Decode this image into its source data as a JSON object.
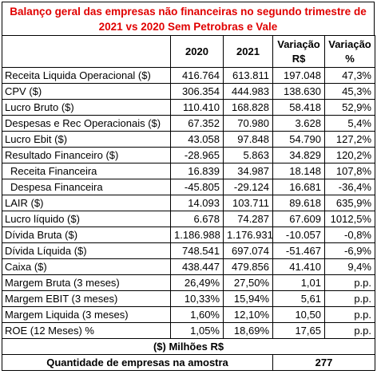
{
  "title": "Balanço geral das empresas não financeiras no segundo trimestre de 2021 vs 2020 Sem Petrobras e Vale",
  "table": {
    "header": [
      "2020",
      "2021",
      "Variação R$",
      "Variação %"
    ],
    "rows": [
      [
        "Receita Liquida Operacional ($)",
        "416.764",
        "613.811",
        "197.048",
        "47,3%"
      ],
      [
        "CPV ($)",
        "306.354",
        "444.983",
        "138.630",
        "45,3%"
      ],
      [
        "Lucro Bruto ($)",
        "110.410",
        "168.828",
        "58.418",
        "52,9%"
      ],
      [
        "Despesas e Rec Operacionais ($)",
        "67.352",
        "70.980",
        "3.628",
        "5,4%"
      ],
      [
        "Lucro Ebit ($)",
        "43.058",
        "97.848",
        "54.790",
        "127,2%"
      ],
      [
        "Resultado Financeiro ($)",
        "-28.965",
        "5.863",
        "34.829",
        "120,2%"
      ],
      [
        "Receita Financeira",
        "16.839",
        "34.987",
        "18.148",
        "107,8%"
      ],
      [
        "Despesa Financeira",
        "-45.805",
        "-29.124",
        "16.681",
        "-36,4%"
      ],
      [
        "LAIR ($)",
        "14.093",
        "103.711",
        "89.618",
        "635,9%"
      ],
      [
        "Lucro líquido ($)",
        "6.678",
        "74.287",
        "67.609",
        "1012,5%"
      ],
      [
        "Dívida Bruta ($)",
        "1.186.988",
        "1.176.931",
        "-10.057",
        "-0,8%"
      ],
      [
        "Dívida Líquida ($)",
        "748.541",
        "697.074",
        "-51.467",
        "-6,9%"
      ],
      [
        "Caixa ($)",
        "438.447",
        "479.856",
        "41.410",
        "9,4%"
      ],
      [
        "Margem Bruta (3 meses)",
        "26,49%",
        "27,50%",
        "1,01",
        "p.p."
      ],
      [
        "Margem EBIT (3 meses)",
        "10,33%",
        "15,94%",
        "5,61",
        "p.p."
      ],
      [
        "Margem Liquida  (3 meses)",
        "1,60%",
        "12,10%",
        "10,50",
        "p.p."
      ],
      [
        "ROE (12 Meses) %",
        "1,05%",
        "18,69%",
        "17,65",
        "p.p."
      ]
    ],
    "unit_note": "($) Milhões R$",
    "sample_label": "Quantidade de empresas na amostra",
    "sample_value": "277"
  }
}
